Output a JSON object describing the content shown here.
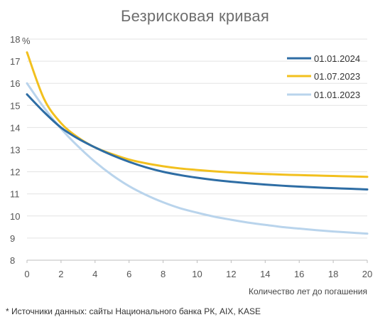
{
  "chart_data": {
    "type": "line",
    "title": "Безрисковая кривая",
    "xlabel": "Количество лет до погашения",
    "ylabel": "%",
    "xlim": [
      0,
      20
    ],
    "ylim": [
      8,
      18
    ],
    "x_ticks": [
      "0",
      "2",
      "4",
      "6",
      "8",
      "10",
      "12",
      "14",
      "16",
      "18",
      "20"
    ],
    "y_ticks": [
      "8",
      "9",
      "10",
      "11",
      "12",
      "13",
      "14",
      "15",
      "16",
      "17",
      "18"
    ],
    "grid": "horizontal",
    "legend_position": "top-right",
    "series": [
      {
        "name": "01.01.2024",
        "color": "#2e6da4",
        "x": [
          0,
          1,
          2,
          3,
          4,
          5,
          6,
          7,
          8,
          9,
          10,
          11,
          12,
          13,
          14,
          15,
          16,
          17,
          18,
          19,
          20
        ],
        "y": [
          15.5,
          14.7,
          14.0,
          13.5,
          13.1,
          12.75,
          12.45,
          12.2,
          12.0,
          11.85,
          11.73,
          11.63,
          11.55,
          11.48,
          11.42,
          11.37,
          11.33,
          11.29,
          11.26,
          11.23,
          11.2
        ]
      },
      {
        "name": "01.07.2023",
        "color": "#f2c01e",
        "x": [
          0,
          1,
          2,
          3,
          4,
          5,
          6,
          7,
          8,
          9,
          10,
          11,
          12,
          13,
          14,
          15,
          16,
          17,
          18,
          19,
          20
        ],
        "y": [
          17.4,
          15.3,
          14.2,
          13.55,
          13.1,
          12.8,
          12.55,
          12.38,
          12.25,
          12.15,
          12.08,
          12.02,
          11.97,
          11.93,
          11.9,
          11.87,
          11.85,
          11.83,
          11.81,
          11.79,
          11.77
        ]
      },
      {
        "name": "01.01.2023",
        "color": "#b9d4ec",
        "x": [
          0,
          1,
          2,
          3,
          4,
          5,
          6,
          7,
          8,
          9,
          10,
          11,
          12,
          13,
          14,
          15,
          16,
          17,
          18,
          19,
          20
        ],
        "y": [
          16.0,
          14.9,
          13.95,
          13.15,
          12.45,
          11.85,
          11.35,
          10.95,
          10.62,
          10.35,
          10.15,
          9.97,
          9.83,
          9.7,
          9.6,
          9.5,
          9.43,
          9.36,
          9.3,
          9.25,
          9.2
        ]
      }
    ]
  },
  "footnote": "* Источники данных: сайты Национального банка РК, AIX, KASE"
}
